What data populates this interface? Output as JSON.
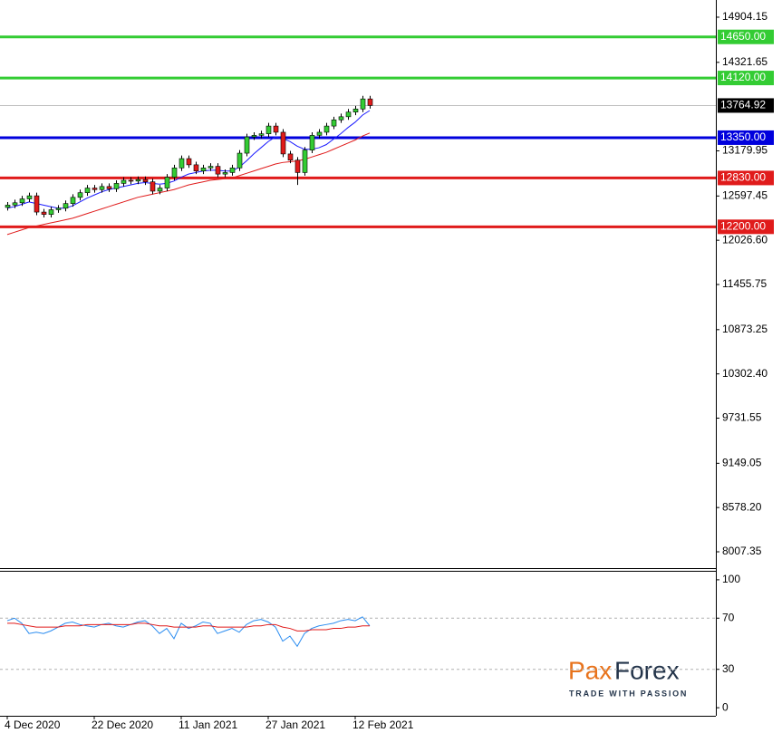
{
  "chart_data": [
    {
      "type": "candlestick",
      "categories": [
        "4 Dec 2020",
        null,
        null,
        null,
        null,
        null,
        null,
        null,
        null,
        null,
        null,
        null,
        "22 Dec 2020",
        null,
        null,
        null,
        null,
        null,
        null,
        null,
        null,
        null,
        null,
        null,
        "11 Jan 2021",
        null,
        null,
        null,
        null,
        null,
        null,
        null,
        null,
        null,
        null,
        null,
        "27 Jan 2021",
        null,
        null,
        null,
        null,
        null,
        null,
        null,
        null,
        null,
        null,
        null,
        "12 Feb 2021",
        null,
        null
      ],
      "open": [
        12450,
        12480,
        12510,
        12560,
        12600,
        12390,
        12360,
        12420,
        12440,
        12500,
        12580,
        12640,
        12700,
        12680,
        12720,
        12690,
        12760,
        12800,
        12790,
        12810,
        12780,
        12660,
        12700,
        12840,
        12960,
        13080,
        13000,
        12920,
        12960,
        12980,
        12880,
        12900,
        12960,
        13150,
        13360,
        13380,
        13400,
        13500,
        13420,
        13140,
        13060,
        12900,
        13190,
        13380,
        13420,
        13500,
        13580,
        13620,
        13680,
        13720,
        13850
      ],
      "high": [
        12520,
        12550,
        12600,
        12640,
        12640,
        12430,
        12460,
        12480,
        12540,
        12620,
        12680,
        12740,
        12740,
        12760,
        12760,
        12800,
        12840,
        12840,
        12850,
        12850,
        12820,
        12740,
        12880,
        13000,
        13120,
        13120,
        13040,
        13000,
        13020,
        13020,
        12940,
        13000,
        13190,
        13400,
        13420,
        13440,
        13540,
        13540,
        13460,
        13180,
        13100,
        13230,
        13420,
        13460,
        13540,
        13620,
        13660,
        13720,
        13760,
        13890,
        13890
      ],
      "low": [
        12410,
        12440,
        12470,
        12520,
        12350,
        12320,
        12320,
        12380,
        12400,
        12460,
        12540,
        12600,
        12640,
        12640,
        12650,
        12650,
        12720,
        12750,
        12750,
        12740,
        12620,
        12620,
        12660,
        12800,
        12920,
        12960,
        12880,
        12880,
        12920,
        12840,
        12840,
        12860,
        12920,
        13110,
        13320,
        13340,
        13360,
        13380,
        13100,
        13020,
        12740,
        12860,
        13150,
        13340,
        13380,
        13460,
        13540,
        13580,
        13640,
        13680,
        13725
      ],
      "close": [
        12480,
        12510,
        12560,
        12600,
        12390,
        12360,
        12420,
        12440,
        12500,
        12580,
        12640,
        12700,
        12680,
        12720,
        12690,
        12760,
        12800,
        12790,
        12810,
        12780,
        12660,
        12700,
        12840,
        12960,
        13080,
        13000,
        12920,
        12960,
        12980,
        12880,
        12900,
        12960,
        13150,
        13360,
        13380,
        13400,
        13500,
        13420,
        13140,
        13060,
        12900,
        13190,
        13380,
        13420,
        13500,
        13580,
        13620,
        13680,
        13720,
        13850,
        13765
      ],
      "up_color": "#33cc33",
      "down_color": "#e01b1b",
      "overlays": [
        {
          "color": "#1a1aff",
          "values": [
            12440,
            12460,
            12490,
            12520,
            12500,
            12480,
            12460,
            12440,
            12440,
            12470,
            12520,
            12570,
            12610,
            12650,
            12680,
            12700,
            12720,
            12740,
            12760,
            12770,
            12760,
            12750,
            12760,
            12790,
            12840,
            12880,
            12900,
            12920,
            12930,
            12930,
            12920,
            12920,
            12970,
            13050,
            13140,
            13220,
            13300,
            13360,
            13340,
            13300,
            13240,
            13200,
            13200,
            13220,
            13260,
            13330,
            13400,
            13480,
            13550,
            13640,
            13700
          ]
        },
        {
          "color": "#e01b1b",
          "values": [
            12100,
            12130,
            12160,
            12190,
            12210,
            12230,
            12250,
            12270,
            12290,
            12310,
            12340,
            12370,
            12400,
            12430,
            12460,
            12490,
            12520,
            12550,
            12580,
            12600,
            12620,
            12640,
            12660,
            12680,
            12710,
            12740,
            12760,
            12780,
            12800,
            12810,
            12820,
            12830,
            12860,
            12890,
            12920,
            12950,
            12980,
            13010,
            13030,
            13040,
            13050,
            13070,
            13100,
            13130,
            13160,
            13200,
            13240,
            13280,
            13320,
            13370,
            13410
          ]
        }
      ],
      "levels": [
        {
          "value": 14650,
          "label": "14650.00",
          "color": "#33cc33"
        },
        {
          "value": 14120,
          "label": "14120.00",
          "color": "#33cc33"
        },
        {
          "value": 13350,
          "label": "13350.00",
          "color": "#0000dd"
        },
        {
          "value": 12830,
          "label": "12830.00",
          "color": "#e01b1b"
        },
        {
          "value": 12200,
          "label": "12200.00",
          "color": "#e01b1b"
        }
      ],
      "last_price": 13764.92,
      "ylim": [
        7797,
        15126
      ],
      "yticks": [
        14904.15,
        14321.65,
        13179.95,
        12597.45,
        {
          "value": 12026.6,
          "label": "12026.60"
        },
        11455.75,
        10873.25,
        {
          "value": 10302.4,
          "label": "10302.40"
        },
        9731.55,
        9149.05,
        {
          "value": 8578.2,
          "label": "8578.20"
        },
        8007.35
      ]
    },
    {
      "type": "line",
      "series": [
        {
          "color": "#2a8cf0",
          "values": [
            68,
            70,
            66,
            58,
            59,
            58,
            60,
            63,
            66,
            67,
            65,
            64,
            63,
            65,
            66,
            64,
            63,
            65,
            67,
            68,
            64,
            58,
            62,
            54,
            66,
            62,
            64,
            67,
            66,
            58,
            60,
            62,
            59,
            65,
            68,
            69,
            67,
            63,
            52,
            56,
            48,
            58,
            62,
            64,
            65,
            66,
            68,
            69,
            68,
            71,
            64
          ]
        },
        {
          "color": "#e01b1b",
          "values": [
            66,
            66,
            65,
            64,
            63,
            63,
            63,
            63,
            64,
            64,
            64,
            65,
            65,
            65,
            65,
            65,
            65,
            65,
            66,
            66,
            65,
            64,
            64,
            63,
            63,
            63,
            63,
            64,
            64,
            63,
            63,
            63,
            63,
            63,
            64,
            64,
            65,
            65,
            63,
            62,
            60,
            60,
            61,
            61,
            61,
            62,
            62,
            63,
            63,
            64,
            64
          ]
        }
      ],
      "ylim": [
        -6.3,
        106.3
      ],
      "yticks": [
        0,
        30,
        70,
        100
      ],
      "levels": [
        30,
        70
      ]
    }
  ],
  "logo": {
    "brand_a": "Pax",
    "brand_b": "Forex",
    "tagline": "TRADE WITH PASSION"
  }
}
